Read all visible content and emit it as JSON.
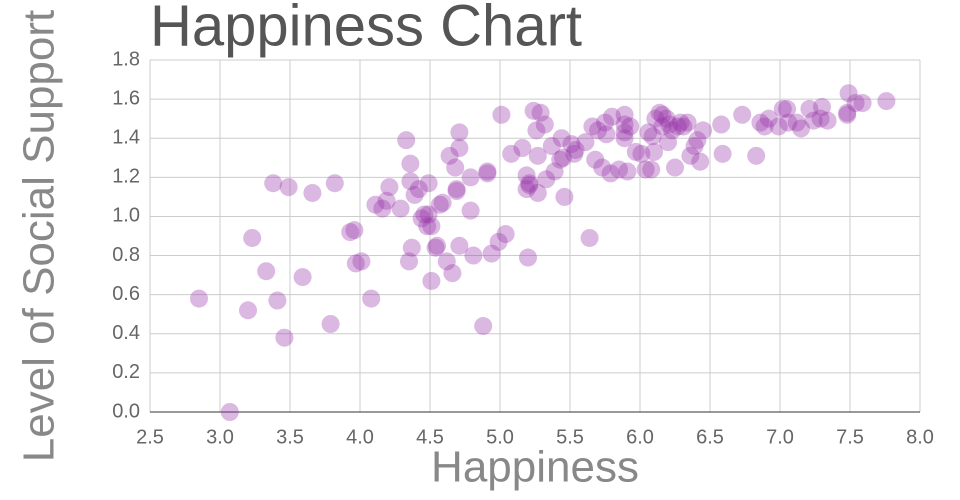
{
  "chart_data": {
    "type": "scatter",
    "title": "Happiness Chart",
    "xlabel": "Happiness",
    "ylabel": "Level of Social Support",
    "color": "#9933aa",
    "grid": true,
    "xlim": [
      2.5,
      8.0
    ],
    "ylim": [
      0,
      1.8
    ],
    "xticks": [
      2.5,
      {
        "value": 3,
        "label": "3.0"
      },
      3.5,
      {
        "value": 4,
        "label": "4.0"
      },
      4.5,
      {
        "value": 5,
        "label": "5.0"
      },
      5.5,
      {
        "value": 6,
        "label": "6.0"
      },
      6.5,
      {
        "value": 7,
        "label": "7.0"
      },
      7.5,
      {
        "value": 8,
        "label": "8.0"
      }
    ],
    "yticks": [
      {
        "value": 0,
        "label": "0.0"
      },
      0.2,
      0.4,
      0.6,
      0.8,
      {
        "value": 1,
        "label": "1.0"
      },
      1.2,
      1.4,
      1.6,
      1.8
    ],
    "x": [
      2.85,
      3.07,
      3.2,
      3.23,
      3.33,
      3.38,
      3.41,
      3.46,
      3.49,
      3.59,
      3.66,
      3.79,
      3.82,
      3.93,
      3.97,
      3.96,
      4.01,
      4.08,
      4.11,
      4.16,
      4.21,
      4.19,
      4.29,
      4.33,
      4.35,
      4.37,
      4.36,
      4.36,
      4.39,
      4.42,
      4.44,
      4.46,
      4.48,
      4.49,
      4.49,
      4.51,
      4.51,
      4.54,
      4.55,
      4.57,
      4.59,
      4.62,
      4.64,
      4.66,
      4.69,
      4.69,
      4.68,
      4.71,
      4.71,
      4.71,
      4.79,
      4.79,
      4.81,
      4.88,
      4.91,
      4.91,
      4.94,
      4.99,
      5.01,
      5.04,
      5.08,
      5.16,
      5.19,
      5.19,
      5.2,
      5.21,
      5.21,
      5.24,
      5.26,
      5.27,
      5.27,
      5.29,
      5.32,
      5.33,
      5.37,
      5.39,
      5.43,
      5.44,
      5.45,
      5.46,
      5.51,
      5.53,
      5.54,
      5.61,
      5.64,
      5.66,
      5.68,
      5.7,
      5.73,
      5.75,
      5.76,
      5.79,
      5.8,
      5.85,
      5.89,
      5.89,
      5.89,
      5.89,
      5.91,
      5.93,
      5.97,
      6.01,
      6.04,
      6.06,
      6.08,
      6.09,
      6.1,
      6.11,
      6.14,
      6.16,
      6.16,
      6.19,
      6.2,
      6.21,
      6.23,
      6.25,
      6.27,
      6.29,
      6.31,
      6.34,
      6.36,
      6.39,
      6.41,
      6.43,
      6.45,
      6.58,
      6.59,
      6.73,
      6.83,
      6.86,
      6.89,
      6.92,
      6.99,
      7.02,
      7.05,
      7.06,
      7.12,
      7.15,
      7.21,
      7.24,
      7.29,
      7.3,
      7.34,
      7.48,
      7.48,
      7.49,
      7.54,
      7.59,
      7.76
    ],
    "y": [
      0.58,
      0.0,
      0.52,
      0.89,
      0.72,
      1.17,
      0.57,
      0.38,
      1.15,
      0.69,
      1.12,
      0.45,
      1.17,
      0.92,
      0.76,
      0.93,
      0.77,
      0.58,
      1.06,
      1.04,
      1.15,
      1.08,
      1.04,
      1.39,
      0.77,
      0.84,
      1.27,
      1.18,
      1.11,
      1.14,
      0.99,
      1.01,
      0.95,
      1.17,
      1.01,
      0.95,
      0.67,
      0.84,
      0.85,
      1.06,
      1.07,
      0.77,
      1.31,
      0.71,
      1.13,
      1.14,
      1.25,
      1.43,
      1.35,
      0.85,
      1.2,
      1.03,
      0.8,
      0.44,
      1.23,
      1.22,
      0.81,
      0.87,
      1.52,
      0.91,
      1.32,
      1.35,
      1.21,
      1.14,
      0.79,
      1.17,
      1.16,
      1.54,
      1.44,
      1.12,
      1.31,
      1.53,
      1.47,
      1.19,
      1.36,
      1.23,
      1.29,
      1.4,
      1.3,
      1.1,
      1.37,
      1.32,
      1.34,
      1.38,
      0.89,
      1.46,
      1.29,
      1.44,
      1.25,
      1.48,
      1.42,
      1.22,
      1.51,
      1.24,
      1.47,
      1.52,
      1.43,
      1.4,
      1.23,
      1.46,
      1.33,
      1.32,
      1.24,
      1.43,
      1.24,
      1.41,
      1.33,
      1.5,
      1.53,
      1.46,
      1.52,
      1.5,
      1.38,
      1.47,
      1.44,
      1.25,
      1.46,
      1.48,
      1.46,
      1.48,
      1.31,
      1.36,
      1.39,
      1.28,
      1.44,
      1.47,
      1.32,
      1.52,
      1.31,
      1.48,
      1.46,
      1.5,
      1.46,
      1.55,
      1.55,
      1.48,
      1.48,
      1.45,
      1.55,
      1.49,
      1.5,
      1.56,
      1.49,
      1.52,
      1.53,
      1.63,
      1.58,
      1.58,
      1.59
    ]
  }
}
